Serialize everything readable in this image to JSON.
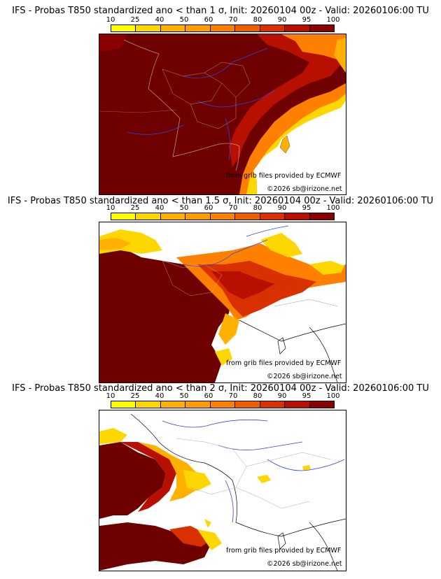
{
  "legend": {
    "ticks": [
      "10",
      "25",
      "40",
      "50",
      "60",
      "70",
      "80",
      "90",
      "95",
      "100"
    ],
    "colors": [
      "#ffff00",
      "#ffd700",
      "#ffb000",
      "#ff9c00",
      "#ff8000",
      "#ee5f00",
      "#d93000",
      "#b81000",
      "#8b0000",
      "#5a0000"
    ]
  },
  "panels": [
    {
      "title": "IFS - Probas T850  standardized ano < than 1 σ, Init: 20260104 00z - Valid: 20260106:00 TU",
      "source_note": "from grib files provided by ECMWF",
      "copyright": "©2026 sb@irizone.net"
    },
    {
      "title": "IFS - Probas T850  standardized ano < than 1.5 σ, Init: 20260104 00z - Valid: 20260106:00 TU",
      "source_note": "from grib files provided by ECMWF",
      "copyright": "©2026 sb@irizone.net"
    },
    {
      "title": "IFS - Probas T850  standardized ano < than 2 σ, Init: 20260104 00z - Valid: 20260106:00 TU",
      "source_note": "from grib files provided by ECMWF",
      "copyright": "©2026 sb@irizone.net"
    }
  ]
}
